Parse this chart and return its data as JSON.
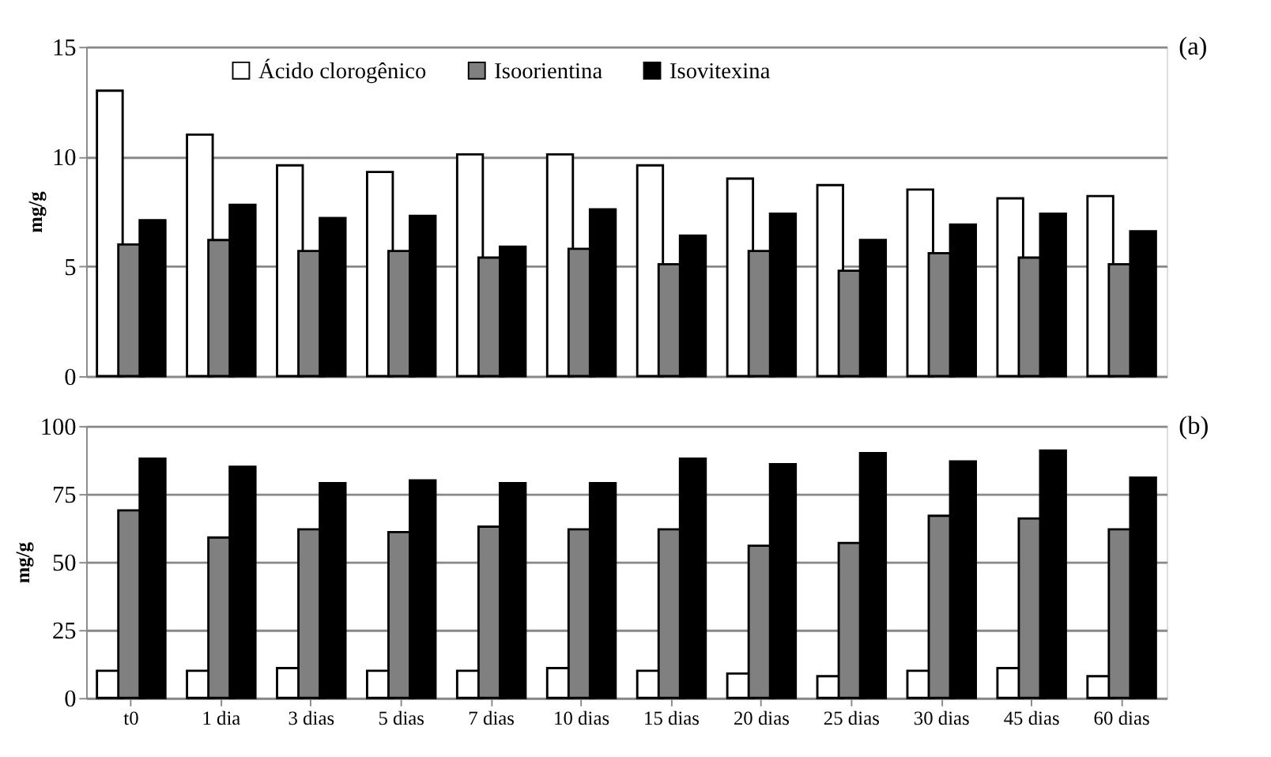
{
  "chart_data": [
    {
      "type": "bar",
      "ylabel": "mg/g",
      "annotations": [
        "(a)"
      ],
      "categories": [
        "t0",
        "1 dia",
        "3 dias",
        "5 dias",
        "7 dias",
        "10 dias",
        "15 dias",
        "20 dias",
        "25 dias",
        "30 dias",
        "45 dias",
        "60 dias"
      ],
      "series": [
        {
          "name": "Ácido clorogênico",
          "color": "#ffffff",
          "values": [
            13.0,
            11.0,
            9.6,
            9.3,
            10.1,
            10.1,
            9.6,
            9.0,
            8.7,
            8.5,
            8.1,
            8.2
          ]
        },
        {
          "name": "Isoorientina",
          "color": "#808080",
          "values": [
            6.0,
            6.2,
            5.7,
            5.7,
            5.4,
            5.8,
            5.1,
            5.7,
            4.8,
            5.6,
            5.4,
            5.1
          ]
        },
        {
          "name": "Isovitexina",
          "color": "#000000",
          "values": [
            7.1,
            7.8,
            7.2,
            7.3,
            5.9,
            7.6,
            6.4,
            7.4,
            6.2,
            6.9,
            7.4,
            6.6
          ]
        }
      ],
      "ylim": [
        0,
        15
      ],
      "yticks": [
        0,
        5,
        10,
        15
      ],
      "grid": "y",
      "legend": "top",
      "tick_labels": "y"
    },
    {
      "type": "bar",
      "ylabel": "mg/g",
      "annotations": [
        "(b)"
      ],
      "categories": [
        "t0",
        "1 dia",
        "3 dias",
        "5 dias",
        "7 dias",
        "10 dias",
        "15 dias",
        "20 dias",
        "25 dias",
        "30 dias",
        "45 dias",
        "60 dias"
      ],
      "series": [
        {
          "color": "#ffffff",
          "values": [
            10,
            10,
            11,
            10,
            10,
            11,
            10,
            9,
            8,
            10,
            11,
            8
          ]
        },
        {
          "color": "#808080",
          "values": [
            69,
            59,
            62,
            61,
            63,
            62,
            62,
            56,
            57,
            67,
            66,
            62
          ]
        },
        {
          "color": "#000000",
          "values": [
            88,
            85,
            79,
            80,
            79,
            79,
            88,
            86,
            90,
            87,
            91,
            81
          ]
        }
      ],
      "ylim": [
        0,
        100
      ],
      "yticks": [
        0,
        25,
        50,
        75,
        100
      ],
      "grid": "y"
    }
  ]
}
